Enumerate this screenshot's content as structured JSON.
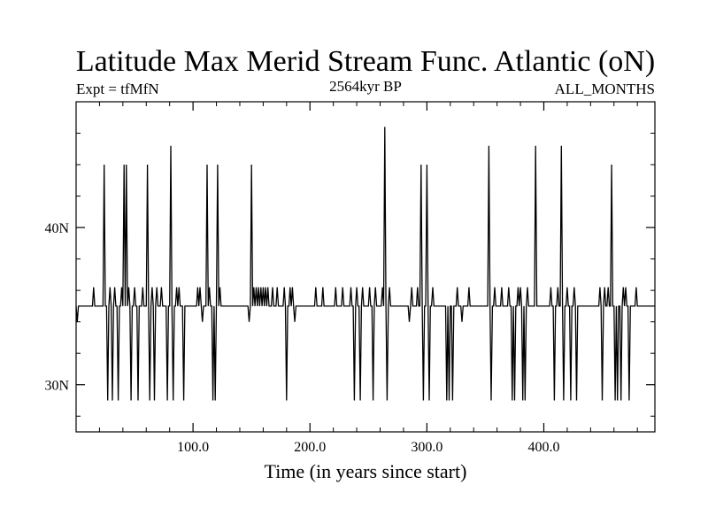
{
  "chart_data": {
    "type": "line",
    "title": "Latitude Max Merid Stream Func. Atlantic (oN)",
    "subtitle_left": "Expt = tfMfN",
    "subtitle_center": "2564kyr BP",
    "subtitle_right": "ALL_MONTHS",
    "xlabel": "Time (in years since start)",
    "ylabel": "",
    "xlim": [
      0,
      495
    ],
    "ylim": [
      27,
      48
    ],
    "x_ticks": [
      {
        "value": 100,
        "label": "100.0"
      },
      {
        "value": 200,
        "label": "200.0"
      },
      {
        "value": 300,
        "label": "300.0"
      },
      {
        "value": 400,
        "label": "400.0"
      }
    ],
    "y_ticks": [
      {
        "value": 30,
        "label": "30N"
      },
      {
        "value": 40,
        "label": "40N"
      }
    ],
    "grid": false,
    "series": [
      {
        "baseline": 35,
        "spikes": [
          [
            1,
            34
          ],
          [
            15,
            36.2
          ],
          [
            24,
            44
          ],
          [
            27,
            29
          ],
          [
            29,
            36.2
          ],
          [
            31,
            29
          ],
          [
            33,
            36.2
          ],
          [
            36,
            29
          ],
          [
            39,
            36.2
          ],
          [
            41,
            44
          ],
          [
            43,
            44
          ],
          [
            45,
            36.2
          ],
          [
            47,
            29
          ],
          [
            50,
            36.2
          ],
          [
            53,
            29
          ],
          [
            57,
            36.2
          ],
          [
            61,
            44
          ],
          [
            63,
            29
          ],
          [
            65,
            36.2
          ],
          [
            67,
            29
          ],
          [
            69,
            36.2
          ],
          [
            73,
            36.2
          ],
          [
            78,
            29
          ],
          [
            81,
            45.2
          ],
          [
            83,
            29
          ],
          [
            86,
            36.2
          ],
          [
            88,
            36.2
          ],
          [
            92,
            29
          ],
          [
            104,
            36.2
          ],
          [
            106,
            36.2
          ],
          [
            108,
            34
          ],
          [
            112,
            44
          ],
          [
            114,
            36.2
          ],
          [
            117,
            29
          ],
          [
            119,
            29
          ],
          [
            121,
            44
          ],
          [
            123,
            36.2
          ],
          [
            148,
            34
          ],
          [
            150,
            44
          ],
          [
            152,
            36.2
          ],
          [
            154,
            36.2
          ],
          [
            156,
            36.2
          ],
          [
            158,
            36.2
          ],
          [
            160,
            36.2
          ],
          [
            162,
            36.2
          ],
          [
            164,
            36.2
          ],
          [
            168,
            36.2
          ],
          [
            172,
            36.2
          ],
          [
            178,
            36.2
          ],
          [
            180,
            29
          ],
          [
            183,
            36.2
          ],
          [
            185,
            36.2
          ],
          [
            187,
            34
          ],
          [
            205,
            36.2
          ],
          [
            211,
            36.2
          ],
          [
            222,
            36.2
          ],
          [
            228,
            36.2
          ],
          [
            235,
            36.2
          ],
          [
            238,
            29
          ],
          [
            240,
            36.2
          ],
          [
            243,
            29
          ],
          [
            245,
            36.2
          ],
          [
            251,
            36.2
          ],
          [
            254,
            29
          ],
          [
            256,
            36.2
          ],
          [
            262,
            36.2
          ],
          [
            264,
            46.4
          ],
          [
            266,
            29
          ],
          [
            268,
            36.2
          ],
          [
            285,
            34
          ],
          [
            287,
            36.2
          ],
          [
            292,
            36.2
          ],
          [
            295,
            44
          ],
          [
            297,
            29
          ],
          [
            300,
            44
          ],
          [
            302,
            29
          ],
          [
            305,
            36.2
          ],
          [
            317,
            29
          ],
          [
            319,
            29
          ],
          [
            322,
            29
          ],
          [
            326,
            36.2
          ],
          [
            330,
            34
          ],
          [
            336,
            36.2
          ],
          [
            353,
            45.2
          ],
          [
            355,
            29
          ],
          [
            358,
            36.2
          ],
          [
            364,
            36.2
          ],
          [
            370,
            36.2
          ],
          [
            373,
            29
          ],
          [
            375,
            29
          ],
          [
            378,
            36.2
          ],
          [
            380,
            36.2
          ],
          [
            382,
            29
          ],
          [
            384,
            29
          ],
          [
            386,
            36.2
          ],
          [
            393,
            45.2
          ],
          [
            406,
            36.2
          ],
          [
            409,
            29
          ],
          [
            412,
            36.2
          ],
          [
            415,
            45.2
          ],
          [
            417,
            29
          ],
          [
            420,
            36.2
          ],
          [
            423,
            29
          ],
          [
            426,
            36.2
          ],
          [
            428,
            29
          ],
          [
            448,
            36.2
          ],
          [
            450,
            29
          ],
          [
            452,
            36.2
          ],
          [
            455,
            36.2
          ],
          [
            458,
            44
          ],
          [
            461,
            29
          ],
          [
            463,
            29
          ],
          [
            466,
            29
          ],
          [
            468,
            36.2
          ],
          [
            470,
            36.2
          ],
          [
            473,
            29
          ],
          [
            479,
            36.2
          ]
        ]
      }
    ]
  }
}
